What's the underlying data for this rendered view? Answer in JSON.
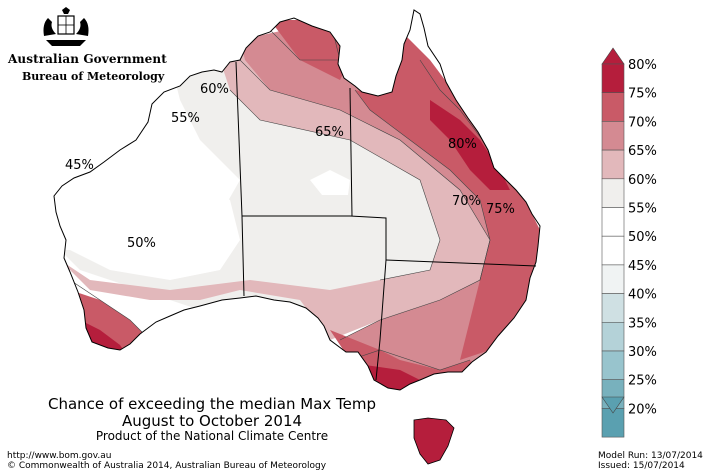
{
  "header": {
    "government": "Australian Government",
    "bureau": "Bureau of Meteorology"
  },
  "title": {
    "line1": "Chance of exceeding the median Max Temp",
    "line2": "August to October 2014",
    "line3": "Product of the National Climate Centre"
  },
  "footer": {
    "url": "http://www.bom.gov.au",
    "copyright": "©  Commonwealth of Australia 2014, Australian Bureau of Meteorology",
    "model_run": "Model Run: 13/07/2014",
    "issued": "Issued: 15/07/2014"
  },
  "map_labels": [
    "60%",
    "55%",
    "65%",
    "45%",
    "80%",
    "70%",
    "75%",
    "50%"
  ],
  "legend": {
    "labels": [
      "80%",
      "75%",
      "70%",
      "65%",
      "60%",
      "55%",
      "50%",
      "45%",
      "40%",
      "35%",
      "30%",
      "25%",
      "20%"
    ],
    "colors": [
      "#b51e3c",
      "#c95a67",
      "#d48a92",
      "#e2b8bb",
      "#f0efed",
      "#ffffff",
      "#ffffff",
      "#f0f3f3",
      "#cfe0e3",
      "#b4d2d8",
      "#98c4cd",
      "#78b1bd",
      "#5aa0b0"
    ]
  },
  "colors": {
    "p80": "#b51e3c",
    "p75": "#c95a67",
    "p70": "#d48a92",
    "p65": "#e2b8bb",
    "p60": "#f0efed",
    "p50": "#ffffff"
  }
}
